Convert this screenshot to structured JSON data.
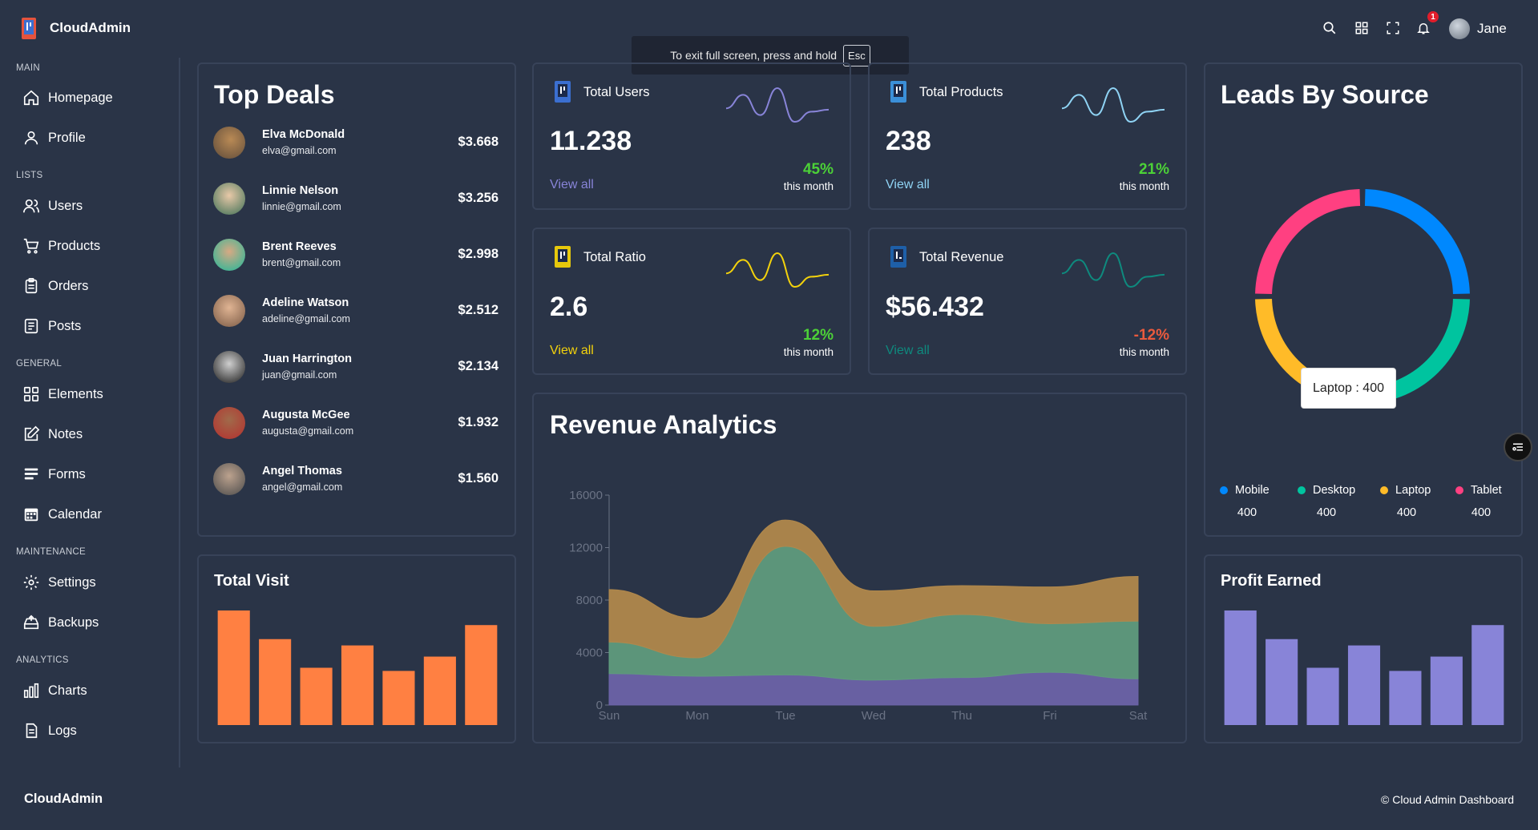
{
  "header": {
    "brand": "CloudAdmin",
    "user": "Jane",
    "notifications": "1"
  },
  "fullscreen_notice": {
    "text": "To exit full screen, press and hold",
    "key": "Esc"
  },
  "sidebar": {
    "groups": [
      {
        "title": "MAIN",
        "items": [
          {
            "label": "Homepage",
            "icon": "home-icon"
          },
          {
            "label": "Profile",
            "icon": "user-icon"
          }
        ]
      },
      {
        "title": "LISTS",
        "items": [
          {
            "label": "Users",
            "icon": "users-icon"
          },
          {
            "label": "Products",
            "icon": "cart-icon"
          },
          {
            "label": "Orders",
            "icon": "clipboard-icon"
          },
          {
            "label": "Posts",
            "icon": "posts-icon"
          }
        ]
      },
      {
        "title": "GENERAL",
        "items": [
          {
            "label": "Elements",
            "icon": "grid-icon"
          },
          {
            "label": "Notes",
            "icon": "edit-icon"
          },
          {
            "label": "Forms",
            "icon": "forms-icon"
          },
          {
            "label": "Calendar",
            "icon": "calendar-icon"
          }
        ]
      },
      {
        "title": "MAINTENANCE",
        "items": [
          {
            "label": "Settings",
            "icon": "gear-icon"
          },
          {
            "label": "Backups",
            "icon": "backup-icon"
          }
        ]
      },
      {
        "title": "ANALYTICS",
        "items": [
          {
            "label": "Charts",
            "icon": "chart-icon"
          },
          {
            "label": "Logs",
            "icon": "logs-icon"
          }
        ]
      }
    ]
  },
  "top_deals": {
    "title": "Top Deals",
    "deals": [
      {
        "name": "Elva McDonald",
        "email": "elva@gmail.com",
        "amount": "$3.668"
      },
      {
        "name": "Linnie Nelson",
        "email": "linnie@gmail.com",
        "amount": "$3.256"
      },
      {
        "name": "Brent Reeves",
        "email": "brent@gmail.com",
        "amount": "$2.998"
      },
      {
        "name": "Adeline Watson",
        "email": "adeline@gmail.com",
        "amount": "$2.512"
      },
      {
        "name": "Juan Harrington",
        "email": "juan@gmail.com",
        "amount": "$2.134"
      },
      {
        "name": "Augusta McGee",
        "email": "augusta@gmail.com",
        "amount": "$1.932"
      },
      {
        "name": "Angel Thomas",
        "email": "angel@gmail.com",
        "amount": "$1.560"
      }
    ]
  },
  "stats": [
    {
      "title": "Total Users",
      "value": "11.238",
      "link": "View all",
      "pct": "45%",
      "month": "this month",
      "color": "#8884d8",
      "pct_color": "#4cd137"
    },
    {
      "title": "Total Products",
      "value": "238",
      "link": "View all",
      "pct": "21%",
      "month": "this month",
      "color": "#8fd3f4",
      "pct_color": "#4cd137"
    },
    {
      "title": "Total Ratio",
      "value": "2.6",
      "link": "View all",
      "pct": "12%",
      "month": "this month",
      "color": "#f3d20c",
      "pct_color": "#4cd137"
    },
    {
      "title": "Total Revenue",
      "value": "$56.432",
      "link": "View all",
      "pct": "-12%",
      "month": "this month",
      "color": "#0e8a7e",
      "pct_color": "#ea5a3d"
    }
  ],
  "leads": {
    "title": "Leads By Source",
    "tooltip": "Laptop : 400",
    "legend": [
      {
        "label": "Mobile",
        "value": "400",
        "color": "#0088fe"
      },
      {
        "label": "Desktop",
        "value": "400",
        "color": "#00c49f"
      },
      {
        "label": "Laptop",
        "value": "400",
        "color": "#ffbb28"
      },
      {
        "label": "Tablet",
        "value": "400",
        "color": "#ff4081"
      }
    ]
  },
  "total_visit": {
    "title": "Total Visit",
    "color": "#ff8042"
  },
  "profit": {
    "title": "Profit Earned",
    "color": "#8884d8"
  },
  "revenue": {
    "title": "Revenue Analytics"
  },
  "footer": {
    "left": "CloudAdmin",
    "right": "© Cloud Admin Dashboard"
  },
  "chart_data": [
    {
      "type": "area",
      "title": "Revenue Analytics",
      "categories": [
        "Sun",
        "Mon",
        "Tue",
        "Wed",
        "Thu",
        "Fri",
        "Sat"
      ],
      "ylim": [
        0,
        16000
      ],
      "yticks": [
        "0",
        "4000",
        "8000",
        "12000",
        "16000"
      ],
      "stacked": true,
      "series": [
        {
          "name": "bottom",
          "color": "#6c63a8",
          "values": [
            2400,
            2200,
            2300,
            1900,
            2100,
            2500,
            2000
          ]
        },
        {
          "name": "middle",
          "color": "#5f9b7d",
          "values": [
            2400,
            1400,
            9800,
            4100,
            4800,
            3700,
            4400
          ]
        },
        {
          "name": "top",
          "color": "#b0884c",
          "values": [
            4000,
            3000,
            2000,
            2700,
            2200,
            2800,
            3400
          ]
        }
      ]
    },
    {
      "type": "bar",
      "title": "Total Visit",
      "values": [
        4000,
        3000,
        2000,
        2780,
        1890,
        2390,
        3490
      ]
    },
    {
      "type": "bar",
      "title": "Profit Earned",
      "values": [
        4000,
        3000,
        2000,
        2780,
        1890,
        2390,
        3490
      ]
    },
    {
      "type": "pie",
      "title": "Leads By Source",
      "categories": [
        "Mobile",
        "Desktop",
        "Laptop",
        "Tablet"
      ],
      "values": [
        400,
        400,
        400,
        400
      ]
    },
    {
      "type": "line",
      "title": "Total Users",
      "values": [
        400,
        600,
        300,
        700,
        200,
        350,
        380
      ]
    },
    {
      "type": "line",
      "title": "Total Products",
      "values": [
        400,
        600,
        300,
        700,
        200,
        350,
        380
      ]
    },
    {
      "type": "line",
      "title": "Total Ratio",
      "values": [
        400,
        600,
        300,
        700,
        200,
        350,
        380
      ]
    },
    {
      "type": "line",
      "title": "Total Revenue",
      "values": [
        400,
        600,
        300,
        700,
        200,
        350,
        380
      ]
    }
  ]
}
